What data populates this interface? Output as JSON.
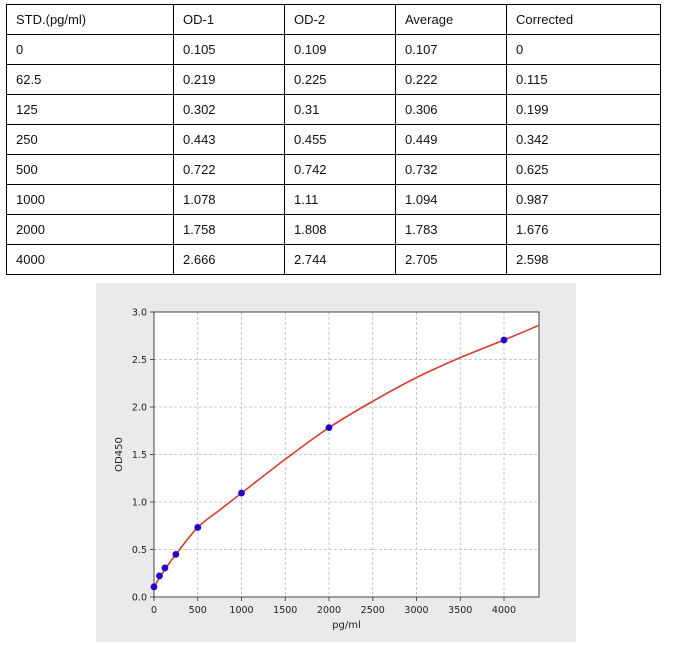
{
  "table": {
    "headers": [
      "STD.(pg/ml)",
      "OD-1",
      "OD-2",
      "Average",
      "Corrected"
    ],
    "rows": [
      [
        "0",
        "0.105",
        "0.109",
        "0.107",
        "0"
      ],
      [
        "62.5",
        "0.219",
        "0.225",
        "0.222",
        "0.115"
      ],
      [
        "125",
        "0.302",
        "0.31",
        "0.306",
        "0.199"
      ],
      [
        "250",
        "0.443",
        "0.455",
        "0.449",
        "0.342"
      ],
      [
        "500",
        "0.722",
        "0.742",
        "0.732",
        "0.625"
      ],
      [
        "1000",
        "1.078",
        "1.11",
        "1.094",
        "0.987"
      ],
      [
        "2000",
        "1.758",
        "1.808",
        "1.783",
        "1.676"
      ],
      [
        "4000",
        "2.666",
        "2.744",
        "2.705",
        "2.598"
      ]
    ]
  },
  "chart_data": {
    "type": "scatter",
    "xlabel": "pg/ml",
    "ylabel": "OD450",
    "xlim": [
      0,
      4400
    ],
    "ylim": [
      0,
      3.0
    ],
    "xticks": [
      0,
      500,
      1000,
      1500,
      2000,
      2500,
      3000,
      3500,
      4000
    ],
    "yticks": [
      "0.0",
      "0.5",
      "1.0",
      "1.5",
      "2.0",
      "2.5",
      "3.0"
    ],
    "grid": true,
    "series": [
      {
        "x": [
          0,
          62.5,
          125,
          250,
          500,
          1000,
          2000,
          4000
        ],
        "y": [
          0.107,
          0.222,
          0.306,
          0.449,
          0.732,
          1.094,
          1.783,
          2.705
        ],
        "marker_color": "#2200cc"
      }
    ],
    "fit_curve": {
      "color": "#d93a2b",
      "x": [
        0,
        125,
        250,
        500,
        750,
        1000,
        1500,
        2000,
        2500,
        3000,
        3500,
        4000,
        4400
      ],
      "y": [
        0.107,
        0.29,
        0.449,
        0.732,
        0.915,
        1.094,
        1.45,
        1.783,
        2.06,
        2.31,
        2.52,
        2.705,
        2.86
      ]
    }
  }
}
